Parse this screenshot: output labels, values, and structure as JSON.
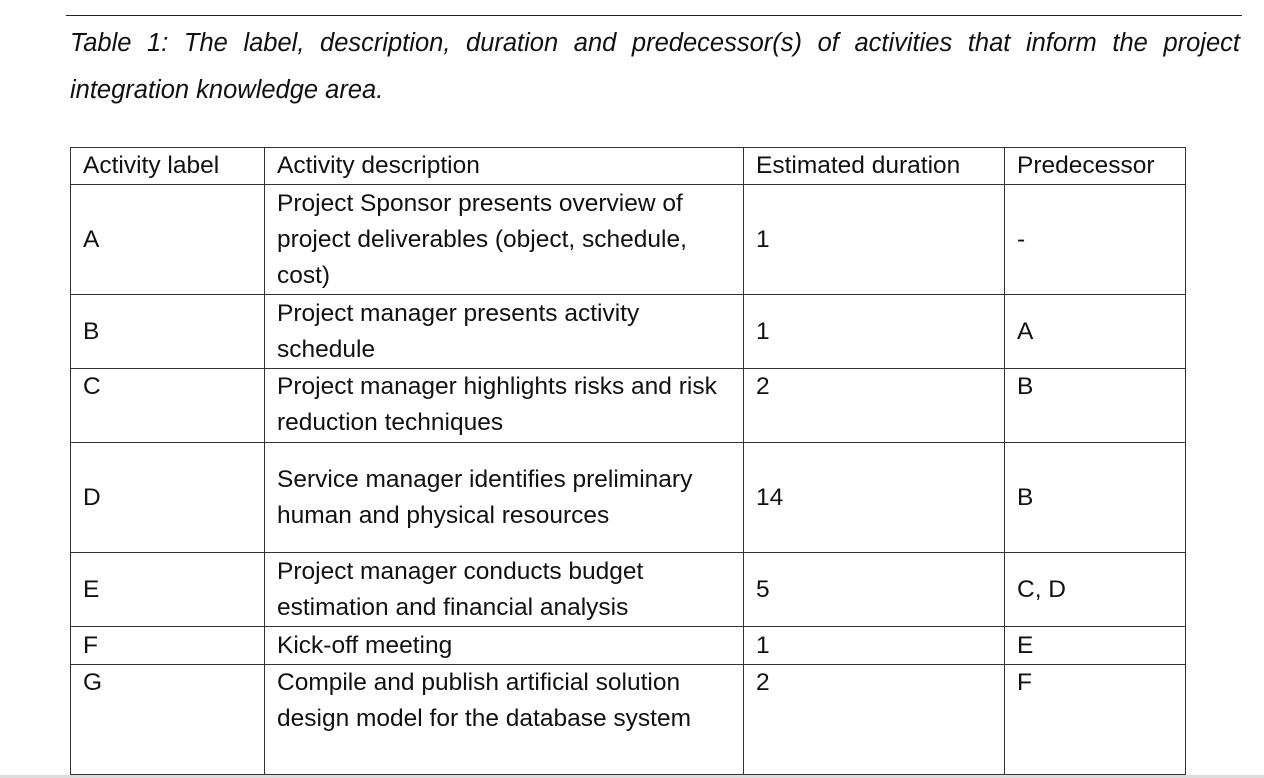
{
  "caption": "Table 1: The label, description, duration and predecessor(s) of activities that inform the project integration knowledge area.",
  "table": {
    "header": [
      "Activity label",
      "Activity description",
      "Estimated duration",
      "Predecessor"
    ],
    "rows": [
      [
        "A",
        "Project Sponsor presents overview of project deliverables (object, schedule, cost)",
        "1",
        "-"
      ],
      [
        "B",
        "Project manager presents activity schedule",
        "1",
        "A"
      ],
      [
        "C",
        "Project manager highlights risks and risk reduction techniques",
        "2",
        "B"
      ],
      [
        "D",
        "Service manager identifies preliminary human and physical resources",
        "14",
        "B"
      ],
      [
        "E",
        "Project manager conducts budget estimation and financial analysis",
        "5",
        "C, D"
      ],
      [
        "F",
        "Kick-off meeting",
        "1",
        "E"
      ],
      [
        "G",
        "Compile and publish artificial solution design model for the database system",
        "2",
        "F"
      ]
    ]
  }
}
